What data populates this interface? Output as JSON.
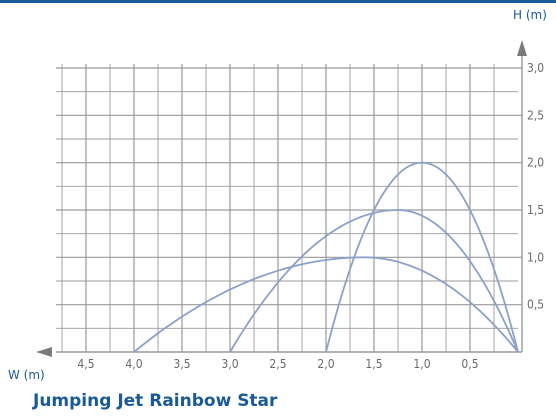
{
  "header": {
    "y_axis_title": "H (m)"
  },
  "footer": {
    "x_axis_title": "W (m)",
    "caption": "Jumping Jet Rainbow Star"
  },
  "colors": {
    "accent": "#1a5a96",
    "grid": "#9a9a9a",
    "curve": "#8aa2c8",
    "tick_label": "#6a6a6a",
    "arrow": "#7a7a7a"
  },
  "chart_data": {
    "type": "line",
    "title": "Jumping Jet Rainbow Star",
    "xlabel": "W (m)",
    "ylabel": "H (m)",
    "x_reversed": true,
    "xlim": [
      0,
      4.75
    ],
    "ylim": [
      0,
      3.0
    ],
    "grid": true,
    "x_ticks": [
      4.5,
      4.0,
      3.5,
      3.0,
      2.5,
      2.0,
      1.5,
      1.0,
      0.5
    ],
    "x_tick_labels": [
      "4,5",
      "4,0",
      "3,5",
      "3,0",
      "2,5",
      "2,0",
      "1,5",
      "1,0",
      "0,5"
    ],
    "y_ticks": [
      0.5,
      1.0,
      1.5,
      2.0,
      2.5,
      3.0
    ],
    "y_tick_labels": [
      "0,5",
      "1,0",
      "1,5",
      "2,0",
      "2,5",
      "3,0"
    ],
    "series": [
      {
        "w_max": 4.0,
        "h_max": 1.0,
        "peak_w": 1.6,
        "x": [
          4.0,
          3.5,
          3.0,
          2.5,
          2.0,
          1.6,
          1.0,
          0.5,
          0.0
        ],
        "y": [
          0.0,
          0.45,
          0.75,
          0.93,
          1.0,
          1.0,
          0.85,
          0.55,
          0.0
        ]
      },
      {
        "w_max": 3.0,
        "h_max": 1.5,
        "peak_w": 1.25,
        "x": [
          3.0,
          2.5,
          2.0,
          1.5,
          1.25,
          1.0,
          0.5,
          0.0
        ],
        "y": [
          0.0,
          0.7,
          1.2,
          1.47,
          1.5,
          1.46,
          1.05,
          0.0
        ]
      },
      {
        "w_max": 2.0,
        "h_max": 2.0,
        "peak_w": 1.0,
        "x": [
          2.0,
          1.75,
          1.5,
          1.25,
          1.0,
          0.75,
          0.5,
          0.25,
          0.0
        ],
        "y": [
          0.0,
          0.9,
          1.5,
          1.88,
          2.0,
          1.9,
          1.5,
          0.9,
          0.0
        ]
      }
    ]
  }
}
